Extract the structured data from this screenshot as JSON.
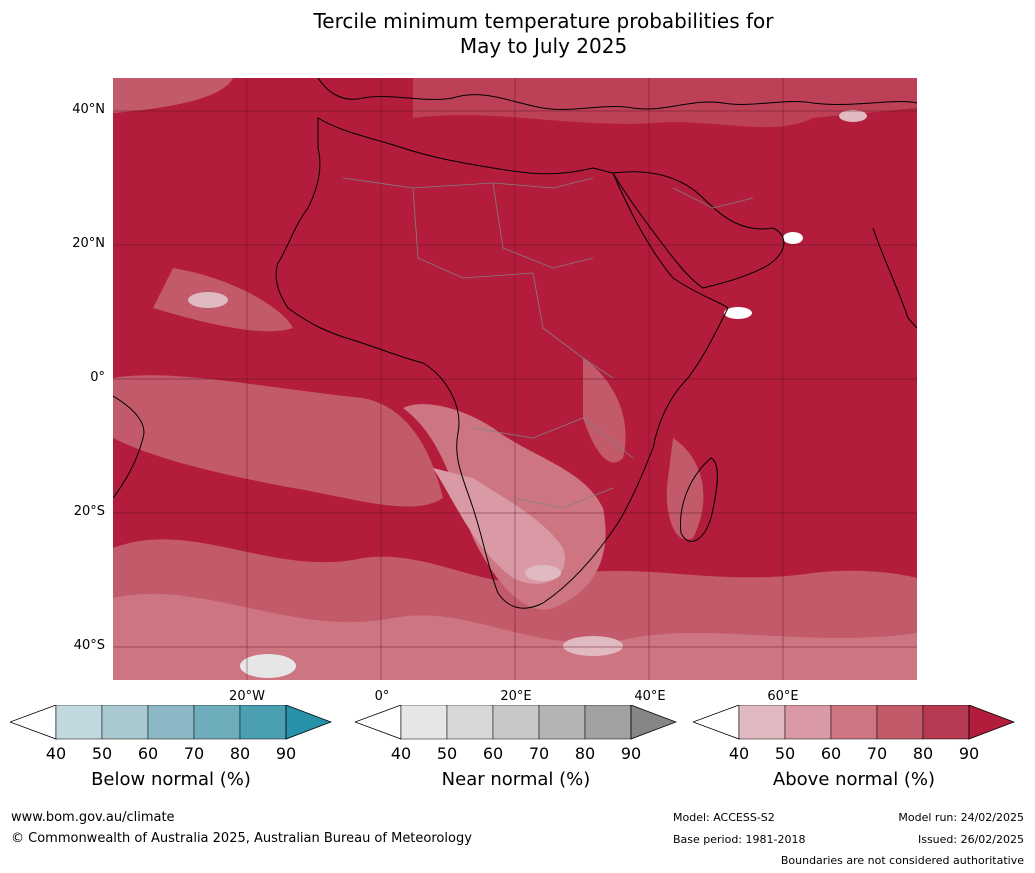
{
  "title_line1": "Tercile minimum temperature probabilities for",
  "title_line2": "May to July 2025",
  "map": {
    "lat_labels": [
      "40°N",
      "20°N",
      "0°",
      "20°S",
      "40°S"
    ],
    "lon_labels": [
      "20°W",
      "0°",
      "20°E",
      "40°E",
      "60°E"
    ],
    "ocean_color": "#b31c3b",
    "land_outline_color": "#000000",
    "border_color": "#808080"
  },
  "colorbars": {
    "below": {
      "label": "Below normal (%)",
      "ticks": [
        "40",
        "50",
        "60",
        "70",
        "80",
        "90"
      ],
      "colors": [
        "#ffffff",
        "#c1d8de",
        "#a9c8cf",
        "#8bb8c4",
        "#6dadbc",
        "#4aa0b2",
        "#2791aa"
      ]
    },
    "near": {
      "label": "Near normal (%)",
      "ticks": [
        "40",
        "50",
        "60",
        "70",
        "80",
        "90"
      ],
      "colors": [
        "#ffffff",
        "#e6e6e6",
        "#d7d7d7",
        "#c8c8c8",
        "#b4b4b4",
        "#a1a1a1",
        "#868686"
      ]
    },
    "above": {
      "label": "Above normal (%)",
      "ticks": [
        "40",
        "50",
        "60",
        "70",
        "80",
        "90"
      ],
      "colors": [
        "#ffffff",
        "#e1b9c0",
        "#d99aa5",
        "#cd7681",
        "#c25a6a",
        "#b63a51",
        "#b31c3b"
      ]
    }
  },
  "footer": {
    "website": "www.bom.gov.au/climate",
    "copyright": "© Commonwealth of Australia 2025, Australian Bureau of Meteorology",
    "model": "Model: ACCESS-S2",
    "base_period": "Base period: 1981-2018",
    "model_run": "Model run: 24/02/2025",
    "issued": "Issued: 26/02/2025",
    "disclaimer": "Boundaries are not considered authoritative"
  }
}
